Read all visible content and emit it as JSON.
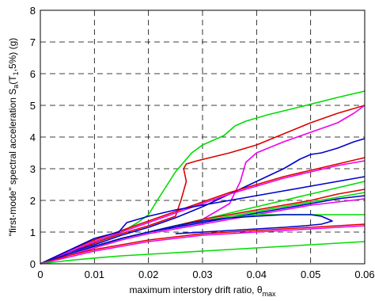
{
  "chart_data": {
    "type": "line",
    "title": "",
    "xlabel": "maximum interstory drift ratio, θ",
    "xlabel_sub": "max",
    "ylabel_parts": [
      "\"first-mode\" spectral acceleration S",
      "a",
      "(T",
      "1",
      ",5%) (g)"
    ],
    "xlim": [
      0,
      0.06
    ],
    "ylim": [
      0,
      8
    ],
    "xticks": [
      "0",
      "0.01",
      "0.02",
      "0.03",
      "0.04",
      "0.05",
      "0.06"
    ],
    "xtick_values": [
      0,
      0.01,
      0.02,
      0.03,
      0.04,
      0.05,
      0.06
    ],
    "yticks": [
      "0",
      "1",
      "2",
      "3",
      "4",
      "5",
      "6",
      "7",
      "8"
    ],
    "ytick_values": [
      0,
      1,
      2,
      3,
      4,
      5,
      6,
      7,
      8
    ],
    "grid": true,
    "series": [
      {
        "color": "#00dd00",
        "x": [
          0,
          0.005,
          0.01,
          0.015,
          0.018,
          0.02,
          0.022,
          0.025,
          0.028,
          0.03,
          0.032,
          0.034,
          0.035,
          0.036,
          0.038,
          0.042,
          0.048,
          0.055,
          0.06
        ],
        "y": [
          0,
          0.35,
          0.65,
          1.0,
          1.3,
          1.55,
          2.1,
          2.9,
          3.5,
          3.75,
          3.9,
          4.05,
          4.2,
          4.35,
          4.5,
          4.7,
          4.95,
          5.25,
          5.45
        ]
      },
      {
        "color": "#dd0000",
        "x": [
          0,
          0.005,
          0.01,
          0.015,
          0.02,
          0.025,
          0.026,
          0.027,
          0.0265,
          0.027,
          0.029,
          0.035,
          0.04,
          0.045,
          0.05,
          0.055,
          0.06
        ],
        "y": [
          0,
          0.35,
          0.65,
          0.95,
          1.2,
          1.5,
          2.0,
          2.6,
          3.0,
          3.15,
          3.25,
          3.5,
          3.75,
          4.1,
          4.45,
          4.75,
          5.0
        ]
      },
      {
        "color": "#ee00ee",
        "x": [
          0,
          0.005,
          0.01,
          0.015,
          0.02,
          0.025,
          0.03,
          0.032,
          0.035,
          0.037,
          0.038,
          0.04,
          0.045,
          0.05,
          0.055,
          0.058,
          0.06
        ],
        "y": [
          0,
          0.3,
          0.55,
          0.8,
          1.0,
          1.15,
          1.4,
          1.6,
          1.9,
          2.6,
          3.2,
          3.5,
          3.85,
          4.15,
          4.45,
          4.75,
          5.0
        ]
      },
      {
        "color": "#0000cc",
        "x": [
          0,
          0.005,
          0.01,
          0.015,
          0.02,
          0.025,
          0.03,
          0.035,
          0.04,
          0.045,
          0.047,
          0.048,
          0.05,
          0.052,
          0.055,
          0.058,
          0.06
        ],
        "y": [
          0,
          0.35,
          0.6,
          0.9,
          1.15,
          1.45,
          1.8,
          2.2,
          2.6,
          3.0,
          3.2,
          3.3,
          3.45,
          3.5,
          3.65,
          3.85,
          3.95
        ]
      },
      {
        "color": "#dd0000",
        "x": [
          0,
          0.005,
          0.01,
          0.015,
          0.02,
          0.025,
          0.03,
          0.035,
          0.04,
          0.045,
          0.05,
          0.055,
          0.06
        ],
        "y": [
          0,
          0.4,
          0.75,
          1.05,
          1.35,
          1.65,
          1.95,
          2.25,
          2.5,
          2.75,
          2.95,
          3.15,
          3.35
        ]
      },
      {
        "color": "#ee00ee",
        "x": [
          0,
          0.005,
          0.01,
          0.015,
          0.02,
          0.025,
          0.03,
          0.035,
          0.04,
          0.045,
          0.05,
          0.055,
          0.06
        ],
        "y": [
          0,
          0.35,
          0.7,
          1.0,
          1.3,
          1.6,
          1.9,
          2.2,
          2.45,
          2.7,
          2.9,
          3.1,
          3.25
        ]
      },
      {
        "color": "#0000cc",
        "x": [
          0,
          0.005,
          0.01,
          0.0145,
          0.016,
          0.02,
          0.025,
          0.03,
          0.035,
          0.04,
          0.045,
          0.05,
          0.055,
          0.06
        ],
        "y": [
          0,
          0.4,
          0.8,
          1.0,
          1.3,
          1.5,
          1.7,
          1.85,
          2.0,
          2.15,
          2.3,
          2.45,
          2.6,
          2.75
        ]
      },
      {
        "color": "#00dd00",
        "x": [
          0,
          0.005,
          0.01,
          0.015,
          0.02,
          0.025,
          0.03,
          0.035,
          0.04,
          0.045,
          0.05,
          0.055,
          0.06
        ],
        "y": [
          0,
          0.3,
          0.55,
          0.8,
          1.0,
          1.2,
          1.4,
          1.6,
          1.8,
          2.0,
          2.2,
          2.4,
          2.6
        ]
      },
      {
        "color": "#dd0000",
        "x": [
          0,
          0.005,
          0.01,
          0.015,
          0.02,
          0.025,
          0.03,
          0.035,
          0.04,
          0.045,
          0.05,
          0.055,
          0.06
        ],
        "y": [
          0,
          0.3,
          0.55,
          0.8,
          1.0,
          1.2,
          1.4,
          1.55,
          1.7,
          1.85,
          2.0,
          2.2,
          2.35
        ]
      },
      {
        "color": "#00dd00",
        "x": [
          0,
          0.005,
          0.01,
          0.015,
          0.02,
          0.025,
          0.03,
          0.035,
          0.04,
          0.045,
          0.05,
          0.055,
          0.06
        ],
        "y": [
          0,
          0.3,
          0.55,
          0.8,
          1.0,
          1.2,
          1.35,
          1.5,
          1.65,
          1.8,
          1.95,
          2.1,
          2.25
        ]
      },
      {
        "color": "#0000cc",
        "x": [
          0,
          0.005,
          0.01,
          0.015,
          0.02,
          0.025,
          0.03,
          0.035,
          0.04,
          0.045,
          0.05,
          0.055,
          0.06
        ],
        "y": [
          0,
          0.3,
          0.55,
          0.8,
          1.0,
          1.15,
          1.3,
          1.45,
          1.6,
          1.75,
          1.9,
          2.05,
          2.15
        ]
      },
      {
        "color": "#ee00ee",
        "x": [
          0,
          0.005,
          0.01,
          0.015,
          0.02,
          0.025,
          0.03,
          0.035,
          0.04,
          0.045,
          0.05,
          0.055,
          0.06
        ],
        "y": [
          0,
          0.25,
          0.5,
          0.75,
          0.95,
          1.1,
          1.25,
          1.4,
          1.55,
          1.7,
          1.85,
          1.95,
          2.05
        ]
      },
      {
        "color": "#00dd00",
        "x": [
          0,
          0.005,
          0.01,
          0.015,
          0.02,
          0.025,
          0.03,
          0.035,
          0.04,
          0.045,
          0.05,
          0.055,
          0.06
        ],
        "y": [
          0,
          0.3,
          0.55,
          0.8,
          1.0,
          1.2,
          1.35,
          1.45,
          1.55,
          1.55,
          1.55,
          1.55,
          1.55
        ]
      },
      {
        "color": "#0000cc",
        "x": [
          0,
          0.005,
          0.01,
          0.015,
          0.02,
          0.025,
          0.03,
          0.035,
          0.04,
          0.045,
          0.05,
          0.052,
          0.054,
          0.052,
          0.049,
          0.045,
          0.04,
          0.035,
          0.03,
          0.025
        ],
        "y": [
          0,
          0.3,
          0.55,
          0.8,
          1.0,
          1.2,
          1.35,
          1.45,
          1.5,
          1.55,
          1.55,
          1.5,
          1.35,
          1.25,
          1.2,
          1.15,
          1.1,
          1.05,
          1.0,
          0.95
        ]
      },
      {
        "color": "#dd0000",
        "x": [
          0,
          0.005,
          0.01,
          0.015,
          0.02,
          0.025,
          0.03,
          0.035,
          0.04,
          0.045,
          0.05,
          0.055,
          0.06
        ],
        "y": [
          0,
          0.25,
          0.45,
          0.6,
          0.75,
          0.85,
          0.95,
          1.0,
          1.05,
          1.1,
          1.15,
          1.2,
          1.25
        ]
      },
      {
        "color": "#ee00ee",
        "x": [
          0,
          0.005,
          0.01,
          0.015,
          0.02,
          0.025,
          0.03,
          0.035,
          0.04,
          0.045,
          0.05,
          0.055,
          0.06
        ],
        "y": [
          0,
          0.2,
          0.4,
          0.55,
          0.7,
          0.8,
          0.9,
          0.95,
          1.0,
          1.05,
          1.1,
          1.15,
          1.2
        ]
      },
      {
        "color": "#00dd00",
        "x": [
          0,
          0.005,
          0.01,
          0.015,
          0.02,
          0.025,
          0.03,
          0.035,
          0.04,
          0.045,
          0.05,
          0.055,
          0.06
        ],
        "y": [
          0,
          0.1,
          0.18,
          0.25,
          0.3,
          0.35,
          0.4,
          0.45,
          0.5,
          0.55,
          0.6,
          0.65,
          0.7
        ]
      }
    ]
  }
}
